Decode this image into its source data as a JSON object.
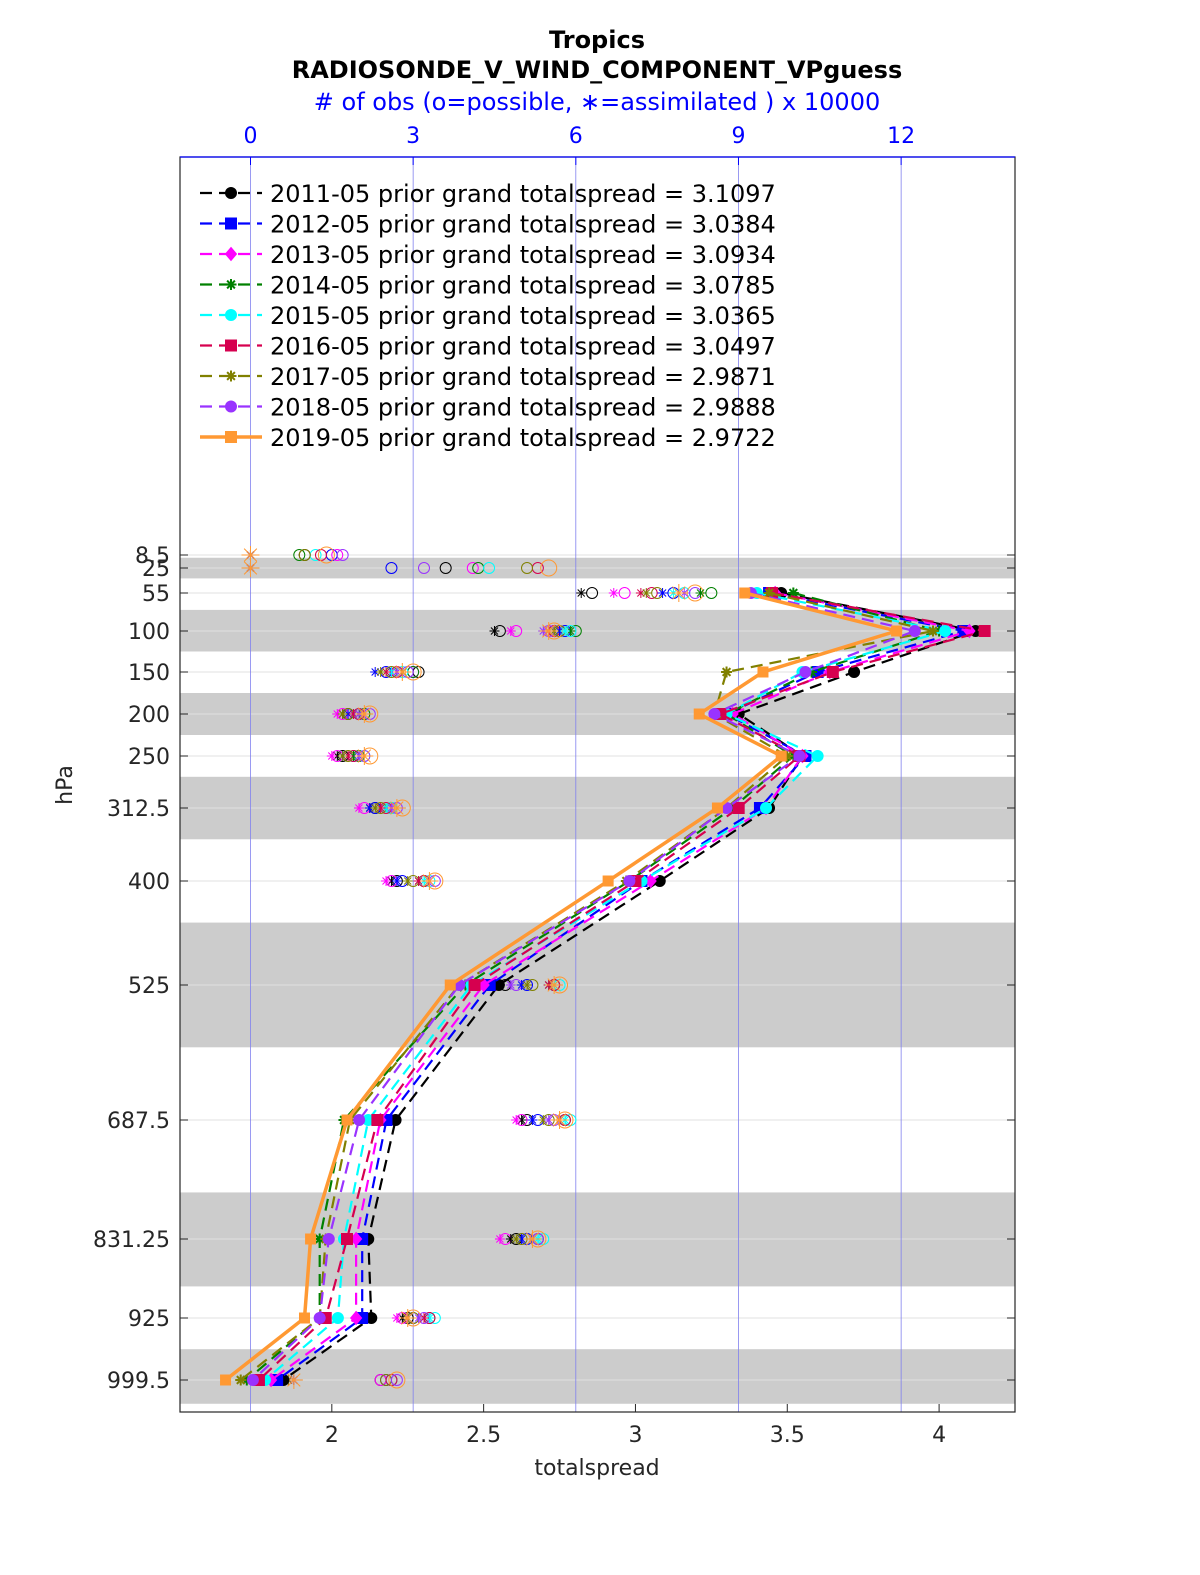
{
  "chart_data": {
    "type": "line",
    "title": "Tropics",
    "subtitle": "RADIOSONDE_V_WIND_COMPONENT_VPguess",
    "top_axis_label": "# of obs (o=possible, ∗=assimilated ) x 10000",
    "xlabel": "totalspread",
    "ylabel": "hPa",
    "xlim": [
      1.5,
      4.25
    ],
    "xticks": [
      "2",
      "2.5",
      "3",
      "3.5",
      "4"
    ],
    "top_xlim": [
      -1.3,
      14.1
    ],
    "top_xticks": [
      "0",
      "3",
      "6",
      "9",
      "12"
    ],
    "levels": [
      8.5,
      25,
      55,
      100,
      150,
      200,
      250,
      312.5,
      400,
      525,
      687.5,
      831.25,
      925,
      999.5
    ],
    "level_labels": [
      "8.5",
      "25",
      "55",
      "100",
      "150",
      "200",
      "250",
      "312.5",
      "400",
      "525",
      "687.5",
      "831.25",
      "925",
      "999.5"
    ],
    "shaded_bands_hPa": [
      [
        12,
        37.5
      ],
      [
        75,
        125
      ],
      [
        175,
        225
      ],
      [
        275,
        350
      ],
      [
        450,
        600
      ],
      [
        775,
        887.5
      ],
      [
        962.5,
        1037
      ]
    ],
    "series": [
      {
        "name": "2011-05",
        "legend": "2011-05 prior grand totalspread = 3.1097",
        "color": "#000000",
        "marker": "circle",
        "solid": false,
        "values": [
          null,
          null,
          3.48,
          4.12,
          3.72,
          3.34,
          3.55,
          3.44,
          3.08,
          2.55,
          2.21,
          2.12,
          2.13,
          1.84
        ]
      },
      {
        "name": "2012-05",
        "legend": "2012-05 prior grand totalspread = 3.0384",
        "color": "#0000ff",
        "marker": "square",
        "solid": false,
        "values": [
          null,
          null,
          3.44,
          4.08,
          3.6,
          3.3,
          3.56,
          3.41,
          3.02,
          2.52,
          2.18,
          2.1,
          2.1,
          1.82
        ]
      },
      {
        "name": "2013-05",
        "legend": "2013-05 prior grand totalspread = 3.0934",
        "color": "#ff00ff",
        "marker": "diamond",
        "solid": false,
        "values": [
          null,
          null,
          3.46,
          4.1,
          3.64,
          3.32,
          3.55,
          3.43,
          3.05,
          2.5,
          2.16,
          2.08,
          2.08,
          1.8
        ]
      },
      {
        "name": "2014-05",
        "legend": "2014-05 prior grand totalspread = 3.0785",
        "color": "#008000",
        "marker": "star",
        "solid": false,
        "values": [
          null,
          null,
          3.52,
          4.0,
          3.58,
          3.3,
          3.52,
          3.32,
          2.98,
          2.44,
          2.04,
          1.96,
          1.96,
          1.72
        ]
      },
      {
        "name": "2015-05",
        "legend": "2015-05 prior grand totalspread = 3.0365",
        "color": "#00ffff",
        "marker": "circle",
        "solid": false,
        "values": [
          null,
          null,
          3.4,
          4.02,
          3.55,
          3.3,
          3.6,
          3.43,
          3.02,
          2.46,
          2.12,
          2.04,
          2.02,
          1.78
        ]
      },
      {
        "name": "2016-05",
        "legend": "2016-05 prior grand totalspread = 3.0497",
        "color": "#d6004f",
        "marker": "square",
        "solid": false,
        "values": [
          null,
          null,
          3.45,
          4.15,
          3.65,
          3.28,
          3.54,
          3.34,
          3.0,
          2.47,
          2.15,
          2.05,
          1.98,
          1.76
        ]
      },
      {
        "name": "2017-05",
        "legend": "2017-05 prior grand totalspread = 2.9871",
        "color": "#808000",
        "marker": "asterisk",
        "solid": false,
        "values": [
          null,
          null,
          3.44,
          3.98,
          3.3,
          3.26,
          3.5,
          3.3,
          2.97,
          2.42,
          2.06,
          1.98,
          1.96,
          1.7
        ]
      },
      {
        "name": "2018-05",
        "legend": "2018-05 prior grand totalspread = 2.9888",
        "color": "#9933ff",
        "marker": "circle",
        "solid": false,
        "values": [
          null,
          null,
          3.38,
          3.92,
          3.56,
          3.26,
          3.54,
          3.3,
          2.98,
          2.42,
          2.09,
          1.99,
          1.96,
          1.74
        ]
      },
      {
        "name": "2019-05",
        "legend": "2019-05 prior grand totalspread = 2.9722",
        "color": "#ff9933",
        "marker": "square",
        "solid": true,
        "values": [
          null,
          null,
          3.36,
          3.86,
          3.42,
          3.21,
          3.48,
          3.27,
          2.91,
          2.39,
          2.05,
          1.93,
          1.91,
          1.65
        ]
      }
    ],
    "obs_counts_x10000": {
      "note": "per level, per year (2011..2019): [possible, assimilated]; values read off top axis",
      "levels": [
        {
          "level": 8.5,
          "possible": [
            1.0,
            1.5,
            1.6,
            0.9,
            1.2,
            1.3,
            1.0,
            1.7,
            1.4
          ],
          "assimilated": [
            0,
            0,
            0,
            0,
            0,
            0,
            0,
            0,
            0
          ]
        },
        {
          "level": 25,
          "possible": [
            3.6,
            2.6,
            4.1,
            4.2,
            4.4,
            5.3,
            5.1,
            3.2,
            5.5
          ],
          "assimilated": [
            0,
            0,
            0,
            0,
            0,
            0,
            0,
            0,
            0
          ]
        },
        {
          "level": 55,
          "possible": [
            6.3,
            7.8,
            6.9,
            8.5,
            8.0,
            7.4,
            7.5,
            8.2,
            8.2
          ],
          "assimilated": [
            6.1,
            7.6,
            6.7,
            8.3,
            7.8,
            7.2,
            7.3,
            8.0,
            7.9
          ]
        },
        {
          "level": 100,
          "possible": [
            4.6,
            5.8,
            4.9,
            6.0,
            5.9,
            5.6,
            5.7,
            5.5,
            5.6
          ],
          "assimilated": [
            4.5,
            5.7,
            4.8,
            5.9,
            5.8,
            5.5,
            5.6,
            5.4,
            5.5
          ]
        },
        {
          "level": 150,
          "possible": [
            3.1,
            2.5,
            3.0,
            3.0,
            2.8,
            2.7,
            2.6,
            2.9,
            3.0
          ],
          "assimilated": [
            2.6,
            2.3,
            2.7,
            2.8,
            2.6,
            2.5,
            2.4,
            2.7,
            2.8
          ]
        },
        {
          "level": 200,
          "possible": [
            1.8,
            2.0,
            1.7,
            2.1,
            2.0,
            2.0,
            1.8,
            2.2,
            2.2
          ],
          "assimilated": [
            1.7,
            1.8,
            1.6,
            2.0,
            1.9,
            1.9,
            1.7,
            2.0,
            2.1
          ]
        },
        {
          "level": 250,
          "possible": [
            1.7,
            1.9,
            1.6,
            2.0,
            2.1,
            1.9,
            1.8,
            2.1,
            2.2
          ],
          "assimilated": [
            1.6,
            1.7,
            1.5,
            1.9,
            2.0,
            1.8,
            1.7,
            2.0,
            2.1
          ]
        },
        {
          "level": 312.5,
          "possible": [
            2.3,
            2.3,
            2.1,
            2.6,
            2.6,
            2.5,
            2.4,
            2.7,
            2.8
          ],
          "assimilated": [
            2.2,
            2.2,
            2.0,
            2.5,
            2.5,
            2.4,
            2.3,
            2.6,
            2.7
          ]
        },
        {
          "level": 400,
          "possible": [
            2.7,
            2.8,
            2.6,
            3.2,
            3.3,
            3.2,
            3.0,
            3.4,
            3.4
          ],
          "assimilated": [
            2.6,
            2.7,
            2.5,
            3.1,
            3.2,
            3.1,
            2.9,
            3.3,
            3.3
          ]
        },
        {
          "level": 525,
          "possible": [
            4.7,
            5.1,
            4.5,
            5.6,
            5.7,
            5.6,
            5.2,
            4.9,
            5.7
          ],
          "assimilated": [
            4.6,
            5.0,
            4.4,
            5.5,
            5.6,
            5.5,
            5.1,
            4.8,
            5.6
          ]
        },
        {
          "level": 687.5,
          "possible": [
            5.1,
            5.3,
            5.0,
            5.8,
            5.9,
            5.8,
            5.5,
            5.6,
            5.8
          ],
          "assimilated": [
            5.0,
            5.2,
            4.9,
            5.7,
            5.8,
            5.7,
            5.4,
            5.5,
            5.7
          ]
        },
        {
          "level": 831.25,
          "possible": [
            4.9,
            5.1,
            4.7,
            5.3,
            5.4,
            5.3,
            5.0,
            5.3,
            5.3
          ],
          "assimilated": [
            4.8,
            5.0,
            4.6,
            5.2,
            5.3,
            5.2,
            4.9,
            5.2,
            5.2
          ]
        },
        {
          "level": 925,
          "possible": [
            2.9,
            3.0,
            2.8,
            3.3,
            3.4,
            3.3,
            3.0,
            3.2,
            3.0
          ],
          "assimilated": [
            2.8,
            2.9,
            2.7,
            3.2,
            3.3,
            3.2,
            2.9,
            3.1,
            2.9
          ]
        },
        {
          "level": 999.5,
          "possible": [
            2.4,
            2.5,
            2.4,
            2.6,
            2.6,
            2.6,
            2.5,
            2.7,
            2.7
          ],
          "assimilated": [
            0.7,
            0.7,
            0.7,
            0.8,
            0.8,
            0.8,
            0.7,
            0.8,
            0.8
          ]
        }
      ]
    }
  }
}
